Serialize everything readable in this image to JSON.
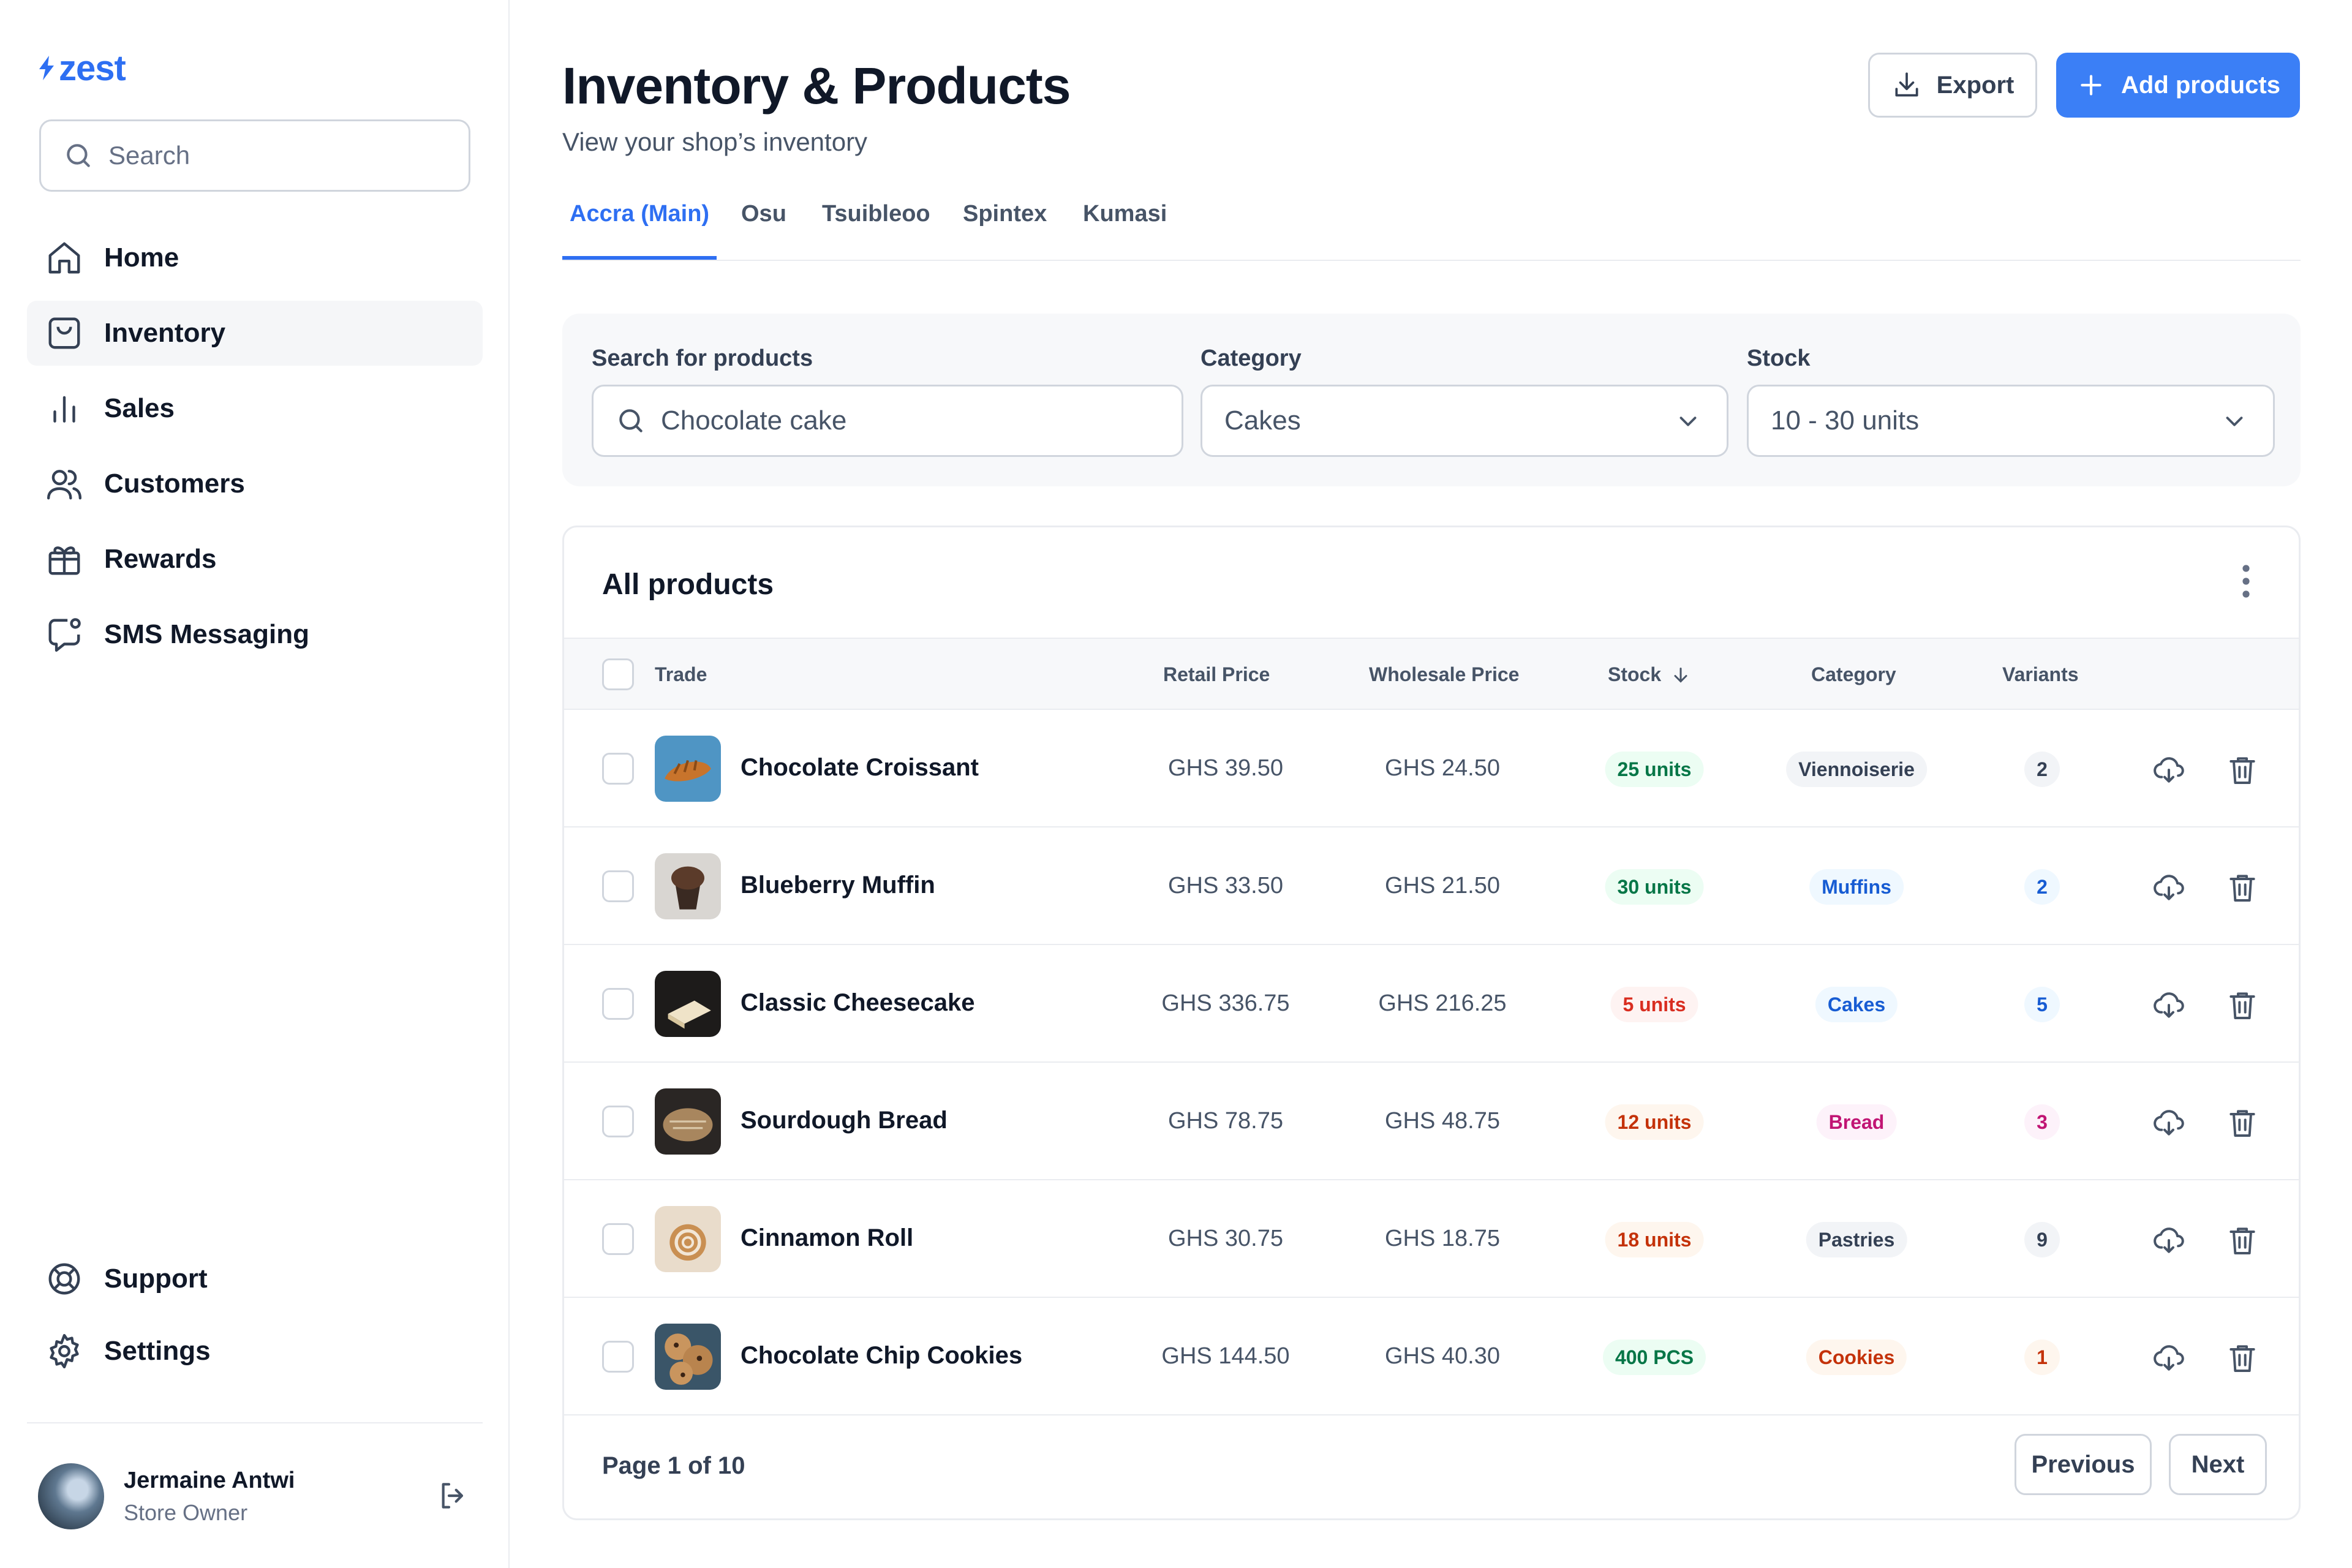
{
  "app": {
    "logo_text": "zest",
    "brand_color": "#2e6ff2"
  },
  "sidebar": {
    "search_placeholder": "Search",
    "items": [
      {
        "label": "Home",
        "icon": "home-icon"
      },
      {
        "label": "Inventory",
        "icon": "inventory-icon",
        "active": true
      },
      {
        "label": "Sales",
        "icon": "bar-chart-icon"
      },
      {
        "label": "Customers",
        "icon": "users-icon"
      },
      {
        "label": "Rewards",
        "icon": "gift-icon"
      },
      {
        "label": "SMS Messaging",
        "icon": "message-icon"
      }
    ],
    "bottom_items": [
      {
        "label": "Support",
        "icon": "lifebuoy-icon"
      },
      {
        "label": "Settings",
        "icon": "gear-icon"
      }
    ],
    "user": {
      "name": "Jermaine Antwi",
      "role": "Store Owner"
    }
  },
  "header": {
    "title": "Inventory & Products",
    "subtitle": "View your shop’s inventory",
    "export_label": "Export",
    "add_label": "Add products"
  },
  "tabs": [
    {
      "label": "Accra (Main)",
      "active": true
    },
    {
      "label": "Osu"
    },
    {
      "label": "Tsuibleoo"
    },
    {
      "label": "Spintex"
    },
    {
      "label": "Kumasi"
    }
  ],
  "filters": {
    "search": {
      "label": "Search for products",
      "value": "Chocolate cake"
    },
    "category": {
      "label": "Category",
      "value": "Cakes"
    },
    "stock": {
      "label": "Stock",
      "value": "10 - 30 units"
    }
  },
  "table": {
    "title": "All products",
    "columns": {
      "trade": "Trade",
      "retail": "Retail Price",
      "wholesale": "Wholesale Price",
      "stock": "Stock",
      "category": "Category",
      "variants": "Variants"
    },
    "rows": [
      {
        "name": "Chocolate Croissant",
        "retail": "GHS 39.50",
        "wholesale": "GHS 24.50",
        "stock": "25 units",
        "stock_status": "green",
        "category": "Viennoiserie",
        "category_color": "gray",
        "variants": "2",
        "variants_color": "gray"
      },
      {
        "name": "Blueberry Muffin",
        "retail": "GHS 33.50",
        "wholesale": "GHS 21.50",
        "stock": "30 units",
        "stock_status": "green",
        "category": "Muffins",
        "category_color": "blue",
        "variants": "2",
        "variants_color": "blue"
      },
      {
        "name": "Classic Cheesecake",
        "retail": "GHS 336.75",
        "wholesale": "GHS 216.25",
        "stock": "5 units",
        "stock_status": "red",
        "category": "Cakes",
        "category_color": "blue",
        "variants": "5",
        "variants_color": "blue"
      },
      {
        "name": "Sourdough Bread",
        "retail": "GHS 78.75",
        "wholesale": "GHS 48.75",
        "stock": "12 units",
        "stock_status": "orange",
        "category": "Bread",
        "category_color": "pink",
        "variants": "3",
        "variants_color": "pink"
      },
      {
        "name": "Cinnamon Roll",
        "retail": "GHS 30.75",
        "wholesale": "GHS 18.75",
        "stock": "18 units",
        "stock_status": "orange",
        "category": "Pastries",
        "category_color": "gray",
        "variants": "9",
        "variants_color": "gray"
      },
      {
        "name": "Chocolate Chip Cookies",
        "retail": "GHS 144.50",
        "wholesale": "GHS 40.30",
        "stock": "400 PCS",
        "stock_status": "green",
        "category": "Cookies",
        "category_color": "orange",
        "variants": "1",
        "variants_color": "orange"
      }
    ],
    "pagination": {
      "info": "Page 1 of 10",
      "previous": "Previous",
      "next": "Next"
    }
  }
}
